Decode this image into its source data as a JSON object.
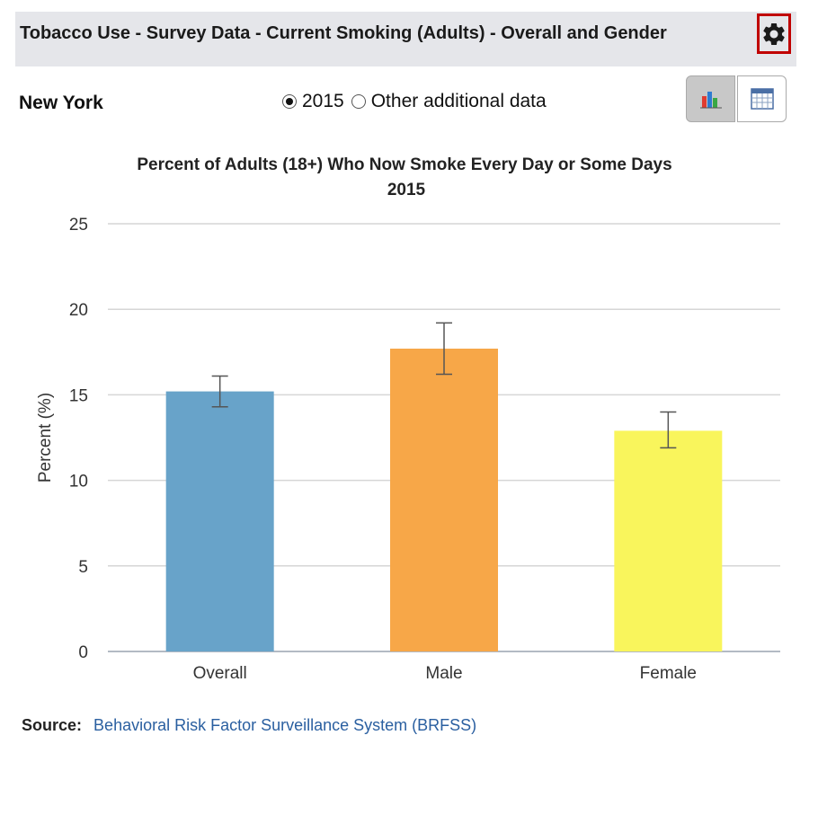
{
  "header": {
    "title": "Tobacco Use - Survey Data - Current Smoking (Adults) - Overall and Gender",
    "gear_icon": "gear-icon"
  },
  "location": "New York",
  "year_options": [
    {
      "label": "2015",
      "selected": true
    },
    {
      "label": "Other additional data",
      "selected": false
    }
  ],
  "view_toggle": {
    "chart_icon": "bar-chart-icon",
    "table_icon": "table-icon",
    "active": "chart"
  },
  "chart_data": {
    "type": "bar",
    "title": "Percent of Adults (18+) Who Now Smoke Every Day or Some Days",
    "subtitle": "2015",
    "ylabel": "Percent (%)",
    "xlabel": "",
    "ylim": [
      0,
      25
    ],
    "yticks": [
      0,
      5,
      10,
      15,
      20,
      25
    ],
    "grid": true,
    "categories": [
      "Overall",
      "Male",
      "Female"
    ],
    "values": [
      15.2,
      17.7,
      12.9
    ],
    "error_low": [
      14.3,
      16.2,
      11.9
    ],
    "error_high": [
      16.1,
      19.2,
      14.0
    ],
    "colors": [
      "#68a3c9",
      "#f7a748",
      "#f9f55c"
    ]
  },
  "source": {
    "label": "Source:",
    "link_text": "Behavioral Risk Factor Surveillance System (BRFSS)"
  }
}
